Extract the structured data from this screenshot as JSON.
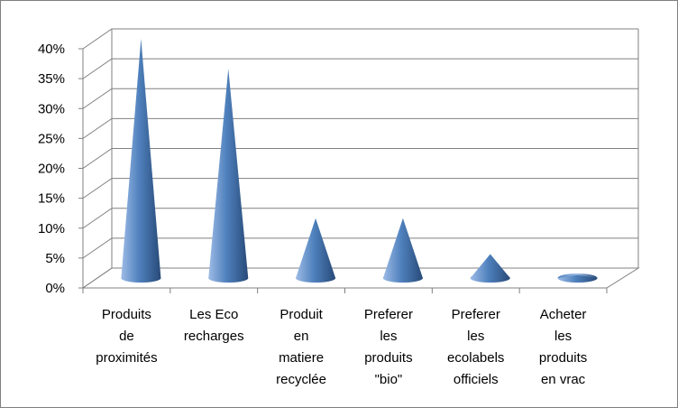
{
  "chart_data": {
    "type": "bar",
    "shape": "cone",
    "title": "",
    "xlabel": "",
    "ylabel": "",
    "ylim": [
      0,
      40
    ],
    "ytick_labels": [
      "0%",
      "5%",
      "10%",
      "15%",
      "20%",
      "25%",
      "30%",
      "35%",
      "40%"
    ],
    "ytick_values": [
      0,
      5,
      10,
      15,
      20,
      25,
      30,
      35,
      40
    ],
    "categories": [
      [
        "Produits",
        "de",
        "proximités"
      ],
      [
        "Les Eco",
        "recharges"
      ],
      [
        "Produit",
        "en",
        "matiere",
        "recyclée"
      ],
      [
        "Preferer",
        "les",
        "produits",
        "\"bio\""
      ],
      [
        "Preferer",
        "les",
        "ecolabels",
        "officiels"
      ],
      [
        "Acheter",
        "les",
        "produits",
        "en vrac"
      ]
    ],
    "values": [
      40,
      35,
      10,
      10,
      4,
      0.5
    ],
    "grid": true,
    "legend": "none",
    "colors": {
      "cone_light": "#9dbbe6",
      "cone_mid": "#4f81bd",
      "cone_dark": "#284a78",
      "grid": "#808080",
      "axis": "#808080"
    }
  }
}
